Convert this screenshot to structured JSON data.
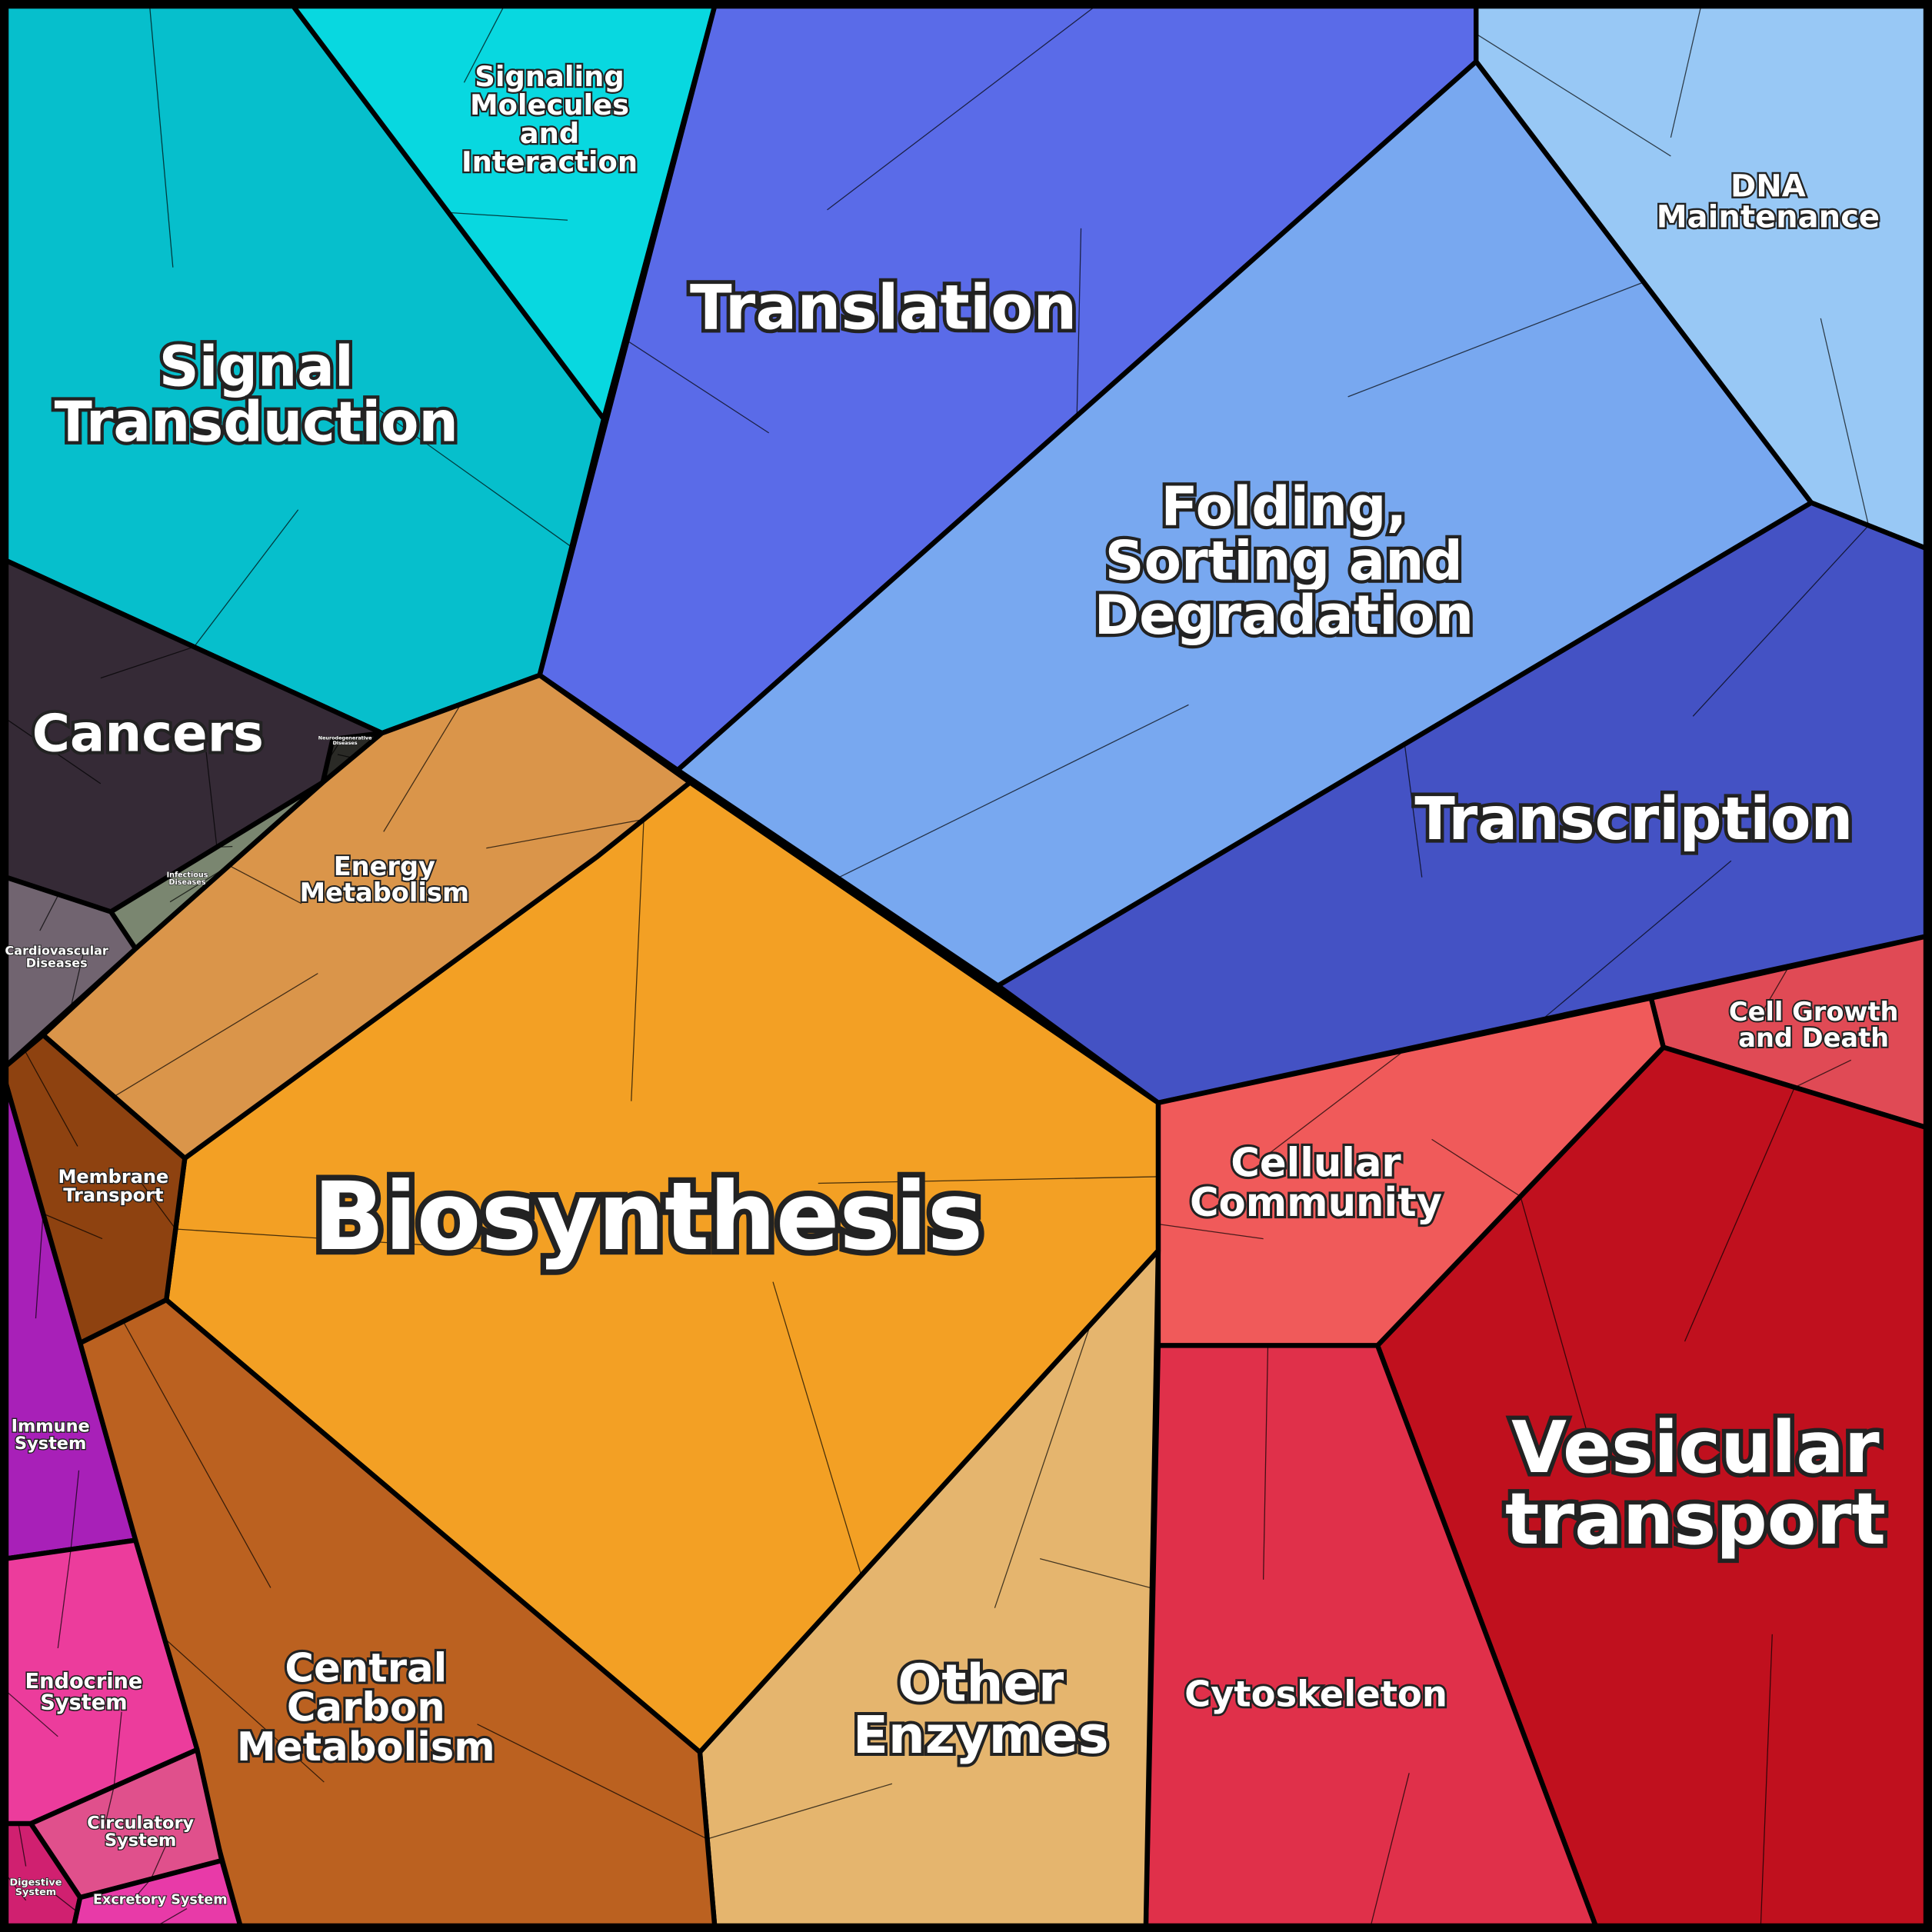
{
  "regions": [
    [
      "Signal",
      "Transduction"
    ],
    [
      "Signaling",
      "Molecules",
      "and",
      "Interaction"
    ],
    [
      "Cancers"
    ],
    [
      "Infectious",
      "Diseases"
    ],
    [
      "Neurodegenerative",
      "Diseases"
    ],
    [
      "Cardiovascular",
      "Diseases"
    ],
    [
      "Translation"
    ],
    [
      "DNA",
      "Maintenance"
    ],
    [
      "Folding,",
      "Sorting and",
      "Degradation"
    ],
    [
      "Transcription"
    ],
    [
      "Cell Growth",
      "and Death"
    ],
    [
      "Vesicular",
      "transport"
    ],
    [
      "Cellular",
      "Community"
    ],
    [
      "Cytoskeleton"
    ],
    [
      "Other",
      "Enzymes"
    ],
    [
      "Biosynthesis"
    ],
    [
      "Energy",
      "Metabolism"
    ],
    [
      "Membrane",
      "Transport"
    ],
    [
      "Central",
      "Carbon",
      "Metabolism"
    ],
    [
      "Immune",
      "System"
    ],
    [
      "Endocrine",
      "System"
    ],
    [
      "Circulatory",
      "System"
    ],
    [
      "Digestive",
      "System"
    ],
    [
      "Excretory System"
    ]
  ]
}
